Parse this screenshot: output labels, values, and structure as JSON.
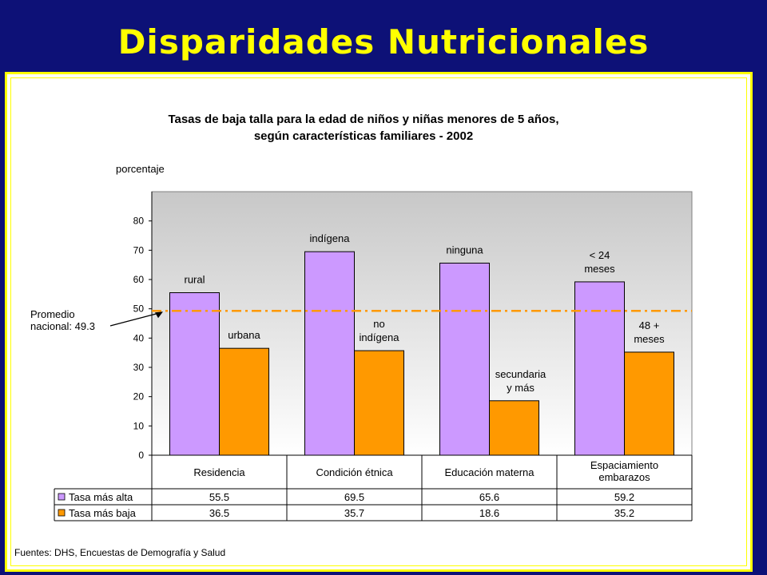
{
  "slide": {
    "title": "Disparidades Nutricionales",
    "source": "Fuentes: DHS, Encuestas de Demografía y Salud"
  },
  "colors": {
    "background": "#0d1177",
    "title": "#ffff00",
    "high": "#cc99ff",
    "low": "#ff9900",
    "average_line": "#ff9900",
    "plot_bg_top": "#c8c8c8",
    "plot_bg_bottom": "#ffffff"
  },
  "chart_data": {
    "type": "bar",
    "title_lines": [
      "Tasas de baja talla para la edad de niños y niñas menores de 5 años,",
      "según características familiares -  2002"
    ],
    "ylabel": "porcentaje",
    "ylim": [
      0,
      90
    ],
    "yticks": [
      0,
      10,
      20,
      30,
      40,
      50,
      60,
      70,
      80
    ],
    "grid": false,
    "categories": [
      "Residencia",
      "Condición étnica",
      "Educación materna",
      [
        "Espaciamiento",
        "embarazos"
      ]
    ],
    "series": [
      {
        "name": "Tasa más alta",
        "values": [
          55.5,
          69.5,
          65.6,
          59.2
        ],
        "labels": [
          [
            "rural"
          ],
          [
            "indígena"
          ],
          [
            "ninguna"
          ],
          [
            "< 24",
            "meses"
          ]
        ]
      },
      {
        "name": "Tasa más baja",
        "values": [
          36.5,
          35.7,
          18.6,
          35.2
        ],
        "labels": [
          [
            "urbana"
          ],
          [
            "no",
            "indígena"
          ],
          [
            "secundaria",
            "y más"
          ],
          [
            "48 +",
            "meses"
          ]
        ]
      }
    ],
    "table_values": [
      [
        "55.5",
        "69.5",
        "65.6",
        "59.2"
      ],
      [
        "36.5",
        "35.7",
        "18.6",
        "35.2"
      ]
    ],
    "reference_line": {
      "value": 49.3,
      "label_lines": [
        "Promedio",
        "nacional: 49.3"
      ]
    }
  }
}
